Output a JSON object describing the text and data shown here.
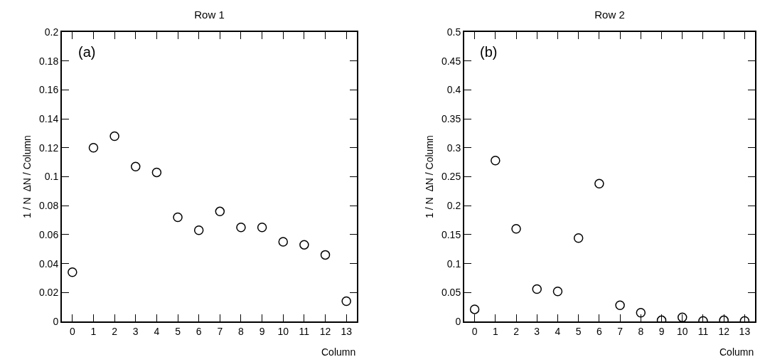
{
  "chart_data": [
    {
      "type": "scatter",
      "title": "Row 1",
      "xlabel": "Column",
      "ylabel": "1 / N  ΔN / Column",
      "annotations": [
        "(a)"
      ],
      "marker": "circle",
      "grid": false,
      "xlim": [
        -0.5,
        13.5
      ],
      "xticks": [
        0,
        1,
        2,
        3,
        4,
        5,
        6,
        7,
        8,
        9,
        10,
        11,
        12,
        13
      ],
      "ylim": [
        0,
        0.2
      ],
      "yticks": [
        0,
        0.02,
        0.04,
        0.06,
        0.08,
        0.1,
        0.12,
        0.14,
        0.16,
        0.18,
        0.2
      ],
      "x": [
        0,
        1,
        2,
        3,
        4,
        5,
        6,
        7,
        8,
        9,
        10,
        11,
        12,
        13
      ],
      "series": [
        {
          "color": "#000000",
          "values": [
            0.034,
            0.12,
            0.128,
            0.107,
            0.103,
            0.072,
            0.063,
            0.076,
            0.065,
            0.065,
            0.055,
            0.053,
            0.046,
            0.014
          ]
        }
      ]
    },
    {
      "type": "scatter",
      "title": "Row 2",
      "xlabel": "Column",
      "ylabel": "1 / N  ΔN / Column",
      "annotations": [
        "(b)"
      ],
      "marker": "circle",
      "grid": false,
      "xlim": [
        -0.5,
        13.5
      ],
      "xticks": [
        0,
        1,
        2,
        3,
        4,
        5,
        6,
        7,
        8,
        9,
        10,
        11,
        12,
        13
      ],
      "ylim": [
        0,
        0.5
      ],
      "yticks": [
        0,
        0.05,
        0.1,
        0.15,
        0.2,
        0.25,
        0.3,
        0.35,
        0.4,
        0.45,
        0.5
      ],
      "x": [
        0,
        1,
        2,
        3,
        4,
        5,
        6,
        7,
        8,
        9,
        10,
        11,
        12,
        13
      ],
      "series": [
        {
          "color": "#000000",
          "values": [
            0.021,
            0.278,
            0.16,
            0.056,
            0.052,
            0.144,
            0.238,
            0.028,
            0.015,
            0.002,
            0.007,
            0.001,
            0.002,
            0.001
          ]
        }
      ]
    }
  ]
}
